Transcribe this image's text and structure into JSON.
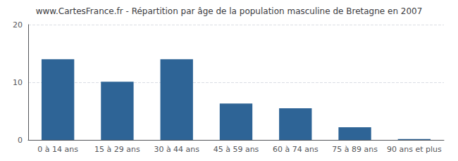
{
  "chart_data": {
    "type": "bar",
    "title": "www.CartesFrance.fr - Répartition par âge de la population masculine de Bretagne en 2007",
    "categories": [
      "0 à 14 ans",
      "15 à 29 ans",
      "30 à 44 ans",
      "45 à 59 ans",
      "60 à 74 ans",
      "75 à 89 ans",
      "90 ans et plus"
    ],
    "values": [
      14.0,
      10.1,
      14.0,
      6.3,
      5.5,
      2.2,
      0.15
    ],
    "color": "#2e6496",
    "ylim": [
      0,
      20
    ],
    "yticks": [
      0,
      10,
      20
    ],
    "grid": true
  }
}
